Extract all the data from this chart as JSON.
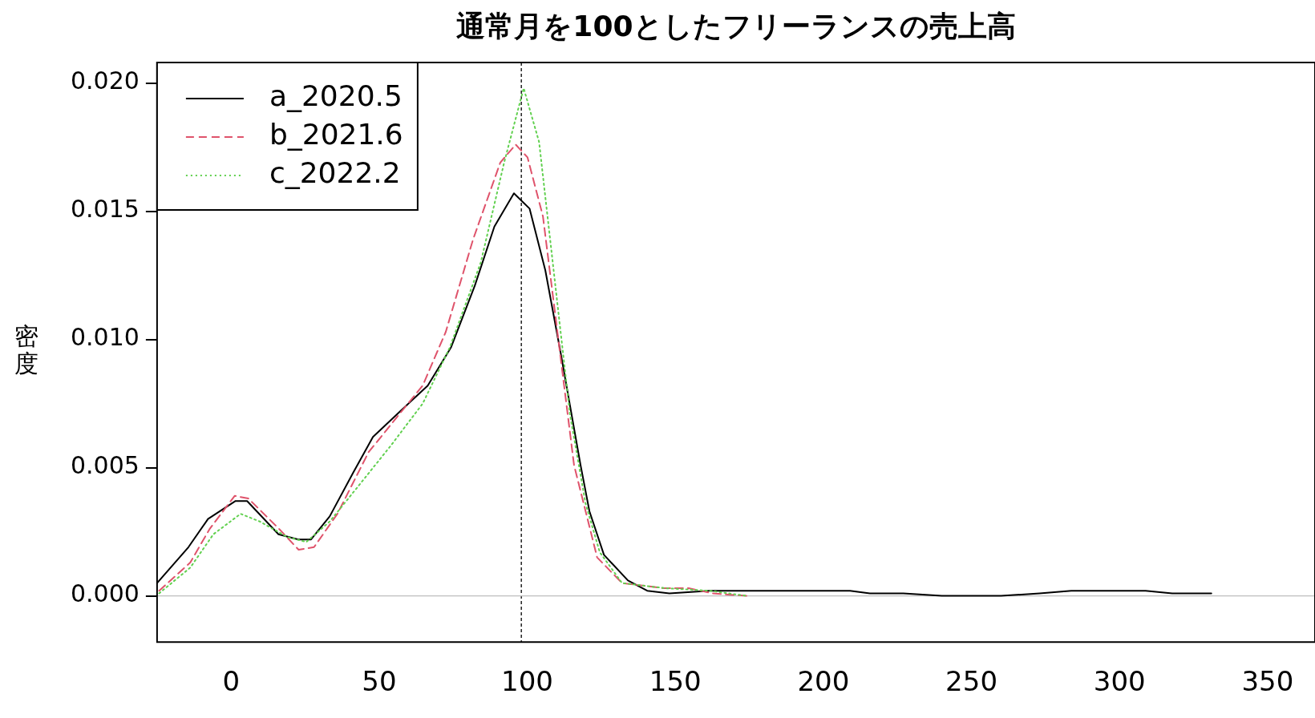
{
  "chart_data": {
    "type": "line",
    "title": "通常月を100としたフリーランスの売上高",
    "ylabel": "密度",
    "xlim": [
      -25,
      366
    ],
    "xticks": [
      0,
      50,
      100,
      150,
      200,
      250,
      300,
      350
    ],
    "ylim": [
      -0.0018,
      0.0208
    ],
    "yticks": [
      {
        "value": 0,
        "label": "0.000"
      },
      0.005,
      {
        "value": 0.01,
        "label": "0.010"
      },
      0.015,
      {
        "value": 0.02,
        "label": "0.020"
      }
    ],
    "grid": false,
    "legend": "top left",
    "marker": "none",
    "series": [
      {
        "name": "a_2020.5",
        "color": "#000000",
        "line_style": "solid",
        "x": [
          -25,
          -14.4,
          -7.8,
          1.5,
          5.4,
          16,
          22.7,
          27,
          33.3,
          41.2,
          47.9,
          57.1,
          66.4,
          74.3,
          82.3,
          88.9,
          95.5,
          100.8,
          106.1,
          111.4,
          118,
          121,
          125.9,
          134,
          140.5,
          148,
          161.5,
          209,
          215.7,
          227,
          240,
          260,
          273,
          283.7,
          293.6,
          308.8,
          317.8,
          331
        ],
        "values": [
          0.0005,
          0.0019,
          0.003,
          0.0037,
          0.0037,
          0.0024,
          0.0022,
          0.0022,
          0.0031,
          0.0048,
          0.0062,
          0.0072,
          0.0082,
          0.0097,
          0.0121,
          0.0144,
          0.0157,
          0.0151,
          0.0127,
          0.0094,
          0.0051,
          0.0033,
          0.0016,
          0.0006,
          0.0002,
          0.0001,
          0.0002,
          0.0002,
          0.0001,
          0.0001,
          0,
          0,
          0.0001,
          0.0002,
          0.0002,
          0.0002,
          0.0001,
          0.0001
        ]
      },
      {
        "name": "b_2021.6",
        "color": "#df536b",
        "line_style": "dashed",
        "x": [
          -24.3,
          -13.8,
          -7.3,
          1.2,
          5.8,
          16.3,
          22.8,
          28,
          35.9,
          46.4,
          56.9,
          64.7,
          72.5,
          81.7,
          90.9,
          96.1,
          100.1,
          105.3,
          110.5,
          115.8,
          123.6,
          132,
          146,
          154.5,
          162.6,
          174
        ],
        "values": [
          0.0002,
          0.0013,
          0.0026,
          0.0039,
          0.0038,
          0.0026,
          0.0018,
          0.0019,
          0.0032,
          0.0056,
          0.0071,
          0.0082,
          0.0103,
          0.0139,
          0.0169,
          0.0176,
          0.0171,
          0.0148,
          0.01,
          0.0051,
          0.0015,
          0.0005,
          0.0003,
          0.0003,
          0.0001,
          0
        ]
      },
      {
        "name": "c_2022.2",
        "color": "#61d04f",
        "line_style": "dotted",
        "x": [
          -24.3,
          -13.8,
          -6,
          3.2,
          9.7,
          18.9,
          25.4,
          33.3,
          43.8,
          54.2,
          64.7,
          73.9,
          84.3,
          92.2,
          98.8,
          104,
          109.2,
          114.4,
          119.7,
          124.5,
          132,
          146.5,
          161.6,
          174
        ],
        "values": [
          0.0001,
          0.0011,
          0.0024,
          0.0032,
          0.0029,
          0.0023,
          0.0021,
          0.0029,
          0.0044,
          0.0059,
          0.0075,
          0.0097,
          0.013,
          0.0169,
          0.0198,
          0.0177,
          0.0124,
          0.0071,
          0.0036,
          0.0017,
          0.0005,
          0.0003,
          0.0002,
          0
        ]
      }
    ],
    "ref_lines": [
      {
        "axis": "x",
        "value": 98,
        "color": "#000000",
        "line_style": "dashed"
      },
      {
        "axis": "y",
        "value": 0,
        "color": "#bebebe",
        "line_style": "solid"
      }
    ]
  }
}
